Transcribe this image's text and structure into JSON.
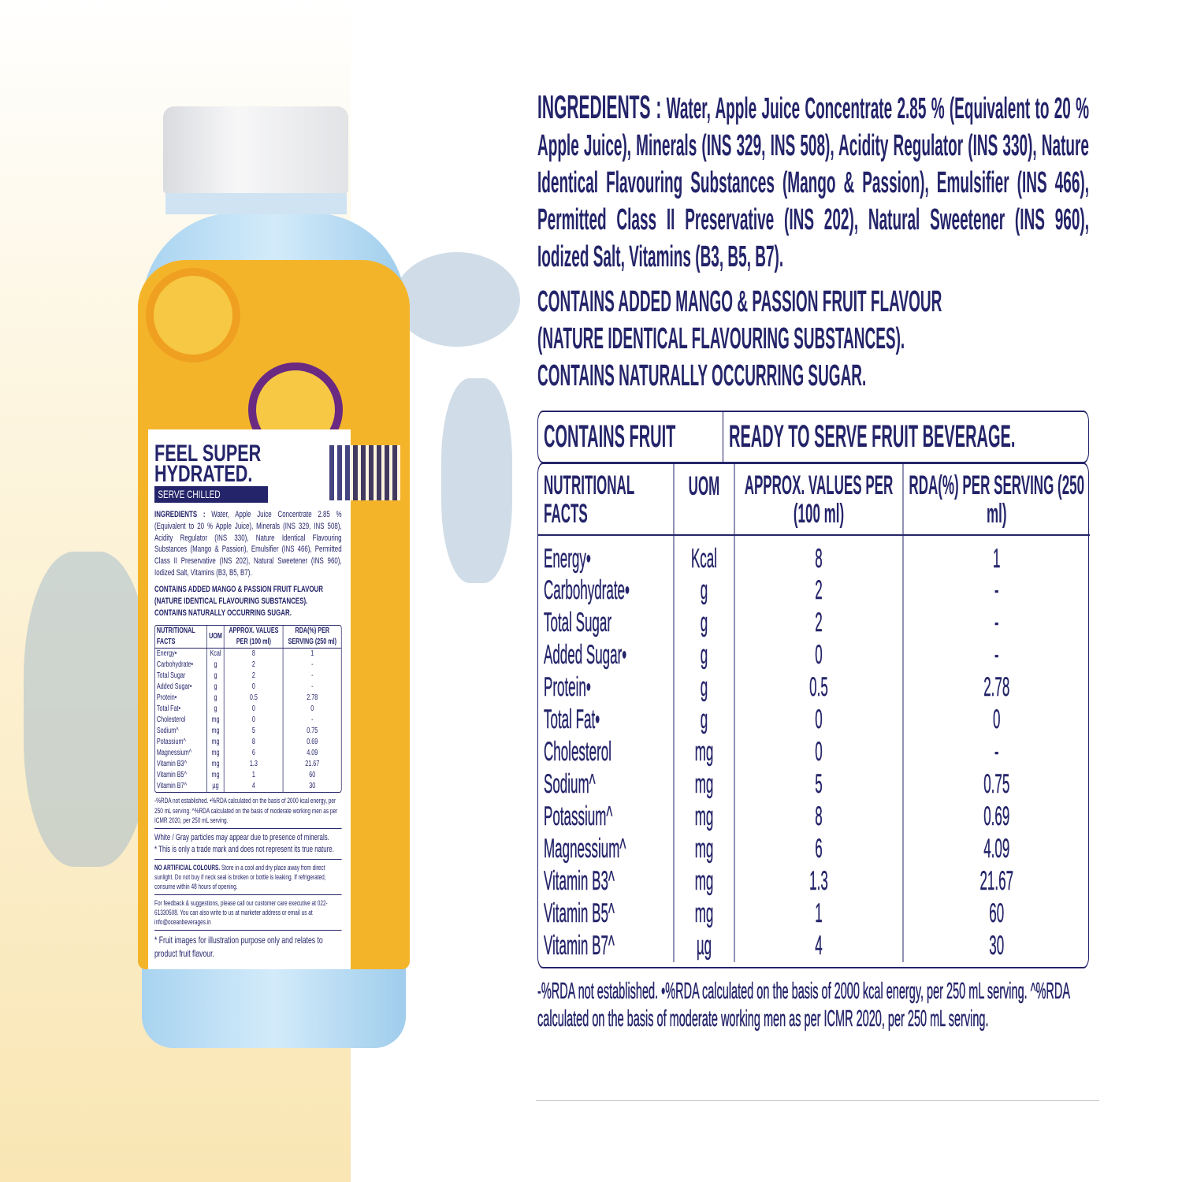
{
  "colors": {
    "navy": "#24246a",
    "label_yellow": "#f4b42a",
    "bottle_blue": "#bfe0f5",
    "passion_purple": "#6a2a82"
  },
  "label": {
    "headline": "FEEL SUPER HYDRATED.",
    "tag": "SERVE CHILLED",
    "qr_icon": "qr-code",
    "social_icons": [
      "facebook-icon",
      "instagram-icon"
    ],
    "notes": [
      "White / Gray particles may appear due to presence of minerals.",
      "* This is only a trade mark and does not represent its true nature."
    ],
    "storage_bold": "NO ARTIFICIAL COLOURS.",
    "storage": "Store in a cool and dry place away from direct sunlight. Do not buy if neck seal is broken or bottle is leaking. If refrigerated, consume within 48 hours of opening.",
    "feedback": "For feedback & suggestions, please call our customer care executive at 022-61330508. You can also write to us at marketer address or email us at info@oceanbeverages.in",
    "fruit_note": "* Fruit images for illustration purpose only and relates to product fruit flavour."
  },
  "ingredients": {
    "label": "INGREDIENTS :",
    "text": "Water, Apple Juice Concentrate 2.85 % (Equivalent to 20 % Apple Juice), Minerals (INS 329, INS 508), Acidity Regulator (INS 330), Nature Identical Flavouring Substances (Mango & Passion), Emulsifier (INS 466), Permitted Class II Preservative (INS 202), Natural Sweetener (INS 960), Iodized Salt, Vitamins (B3, B5, B7)."
  },
  "contains": [
    "CONTAINS ADDED MANGO & PASSION FRUIT FLAVOUR",
    "(NATURE IDENTICAL FLAVOURING SUBSTANCES).",
    "CONTAINS NATURALLY OCCURRING SUGAR."
  ],
  "table": {
    "banner_left": "CONTAINS FRUIT",
    "banner_right": "READY TO SERVE FRUIT BEVERAGE.",
    "headers": [
      "NUTRITIONAL FACTS",
      "UOM",
      "APPROX. VALUES PER (100 ml)",
      "RDA(%) PER SERVING (250 ml)"
    ],
    "rows": [
      [
        "Energy•",
        "Kcal",
        "8",
        "1"
      ],
      [
        "Carbohydrate•",
        "g",
        "2",
        "-"
      ],
      [
        "Total Sugar",
        "g",
        "2",
        "-"
      ],
      [
        "Added Sugar•",
        "g",
        "0",
        "-"
      ],
      [
        "Protein•",
        "g",
        "0.5",
        "2.78"
      ],
      [
        "Total Fat•",
        "g",
        "0",
        "0"
      ],
      [
        "Cholesterol",
        "mg",
        "0",
        "-"
      ],
      [
        "Sodium^",
        "mg",
        "5",
        "0.75"
      ],
      [
        "Potassium^",
        "mg",
        "8",
        "0.69"
      ],
      [
        "Magnessium^",
        "mg",
        "6",
        "4.09"
      ],
      [
        "Vitamin B3^",
        "mg",
        "1.3",
        "21.67"
      ],
      [
        "Vitamin B5^",
        "mg",
        "1",
        "60"
      ],
      [
        "Vitamin B7^",
        "µg",
        "4",
        "30"
      ]
    ]
  },
  "footnote": "-%RDA not established. •%RDA calculated on the basis of 2000 kcal energy, per 250 mL serving. ^%RDA calculated on the basis of moderate working men  as per ICMR 2020, per 250 mL serving."
}
